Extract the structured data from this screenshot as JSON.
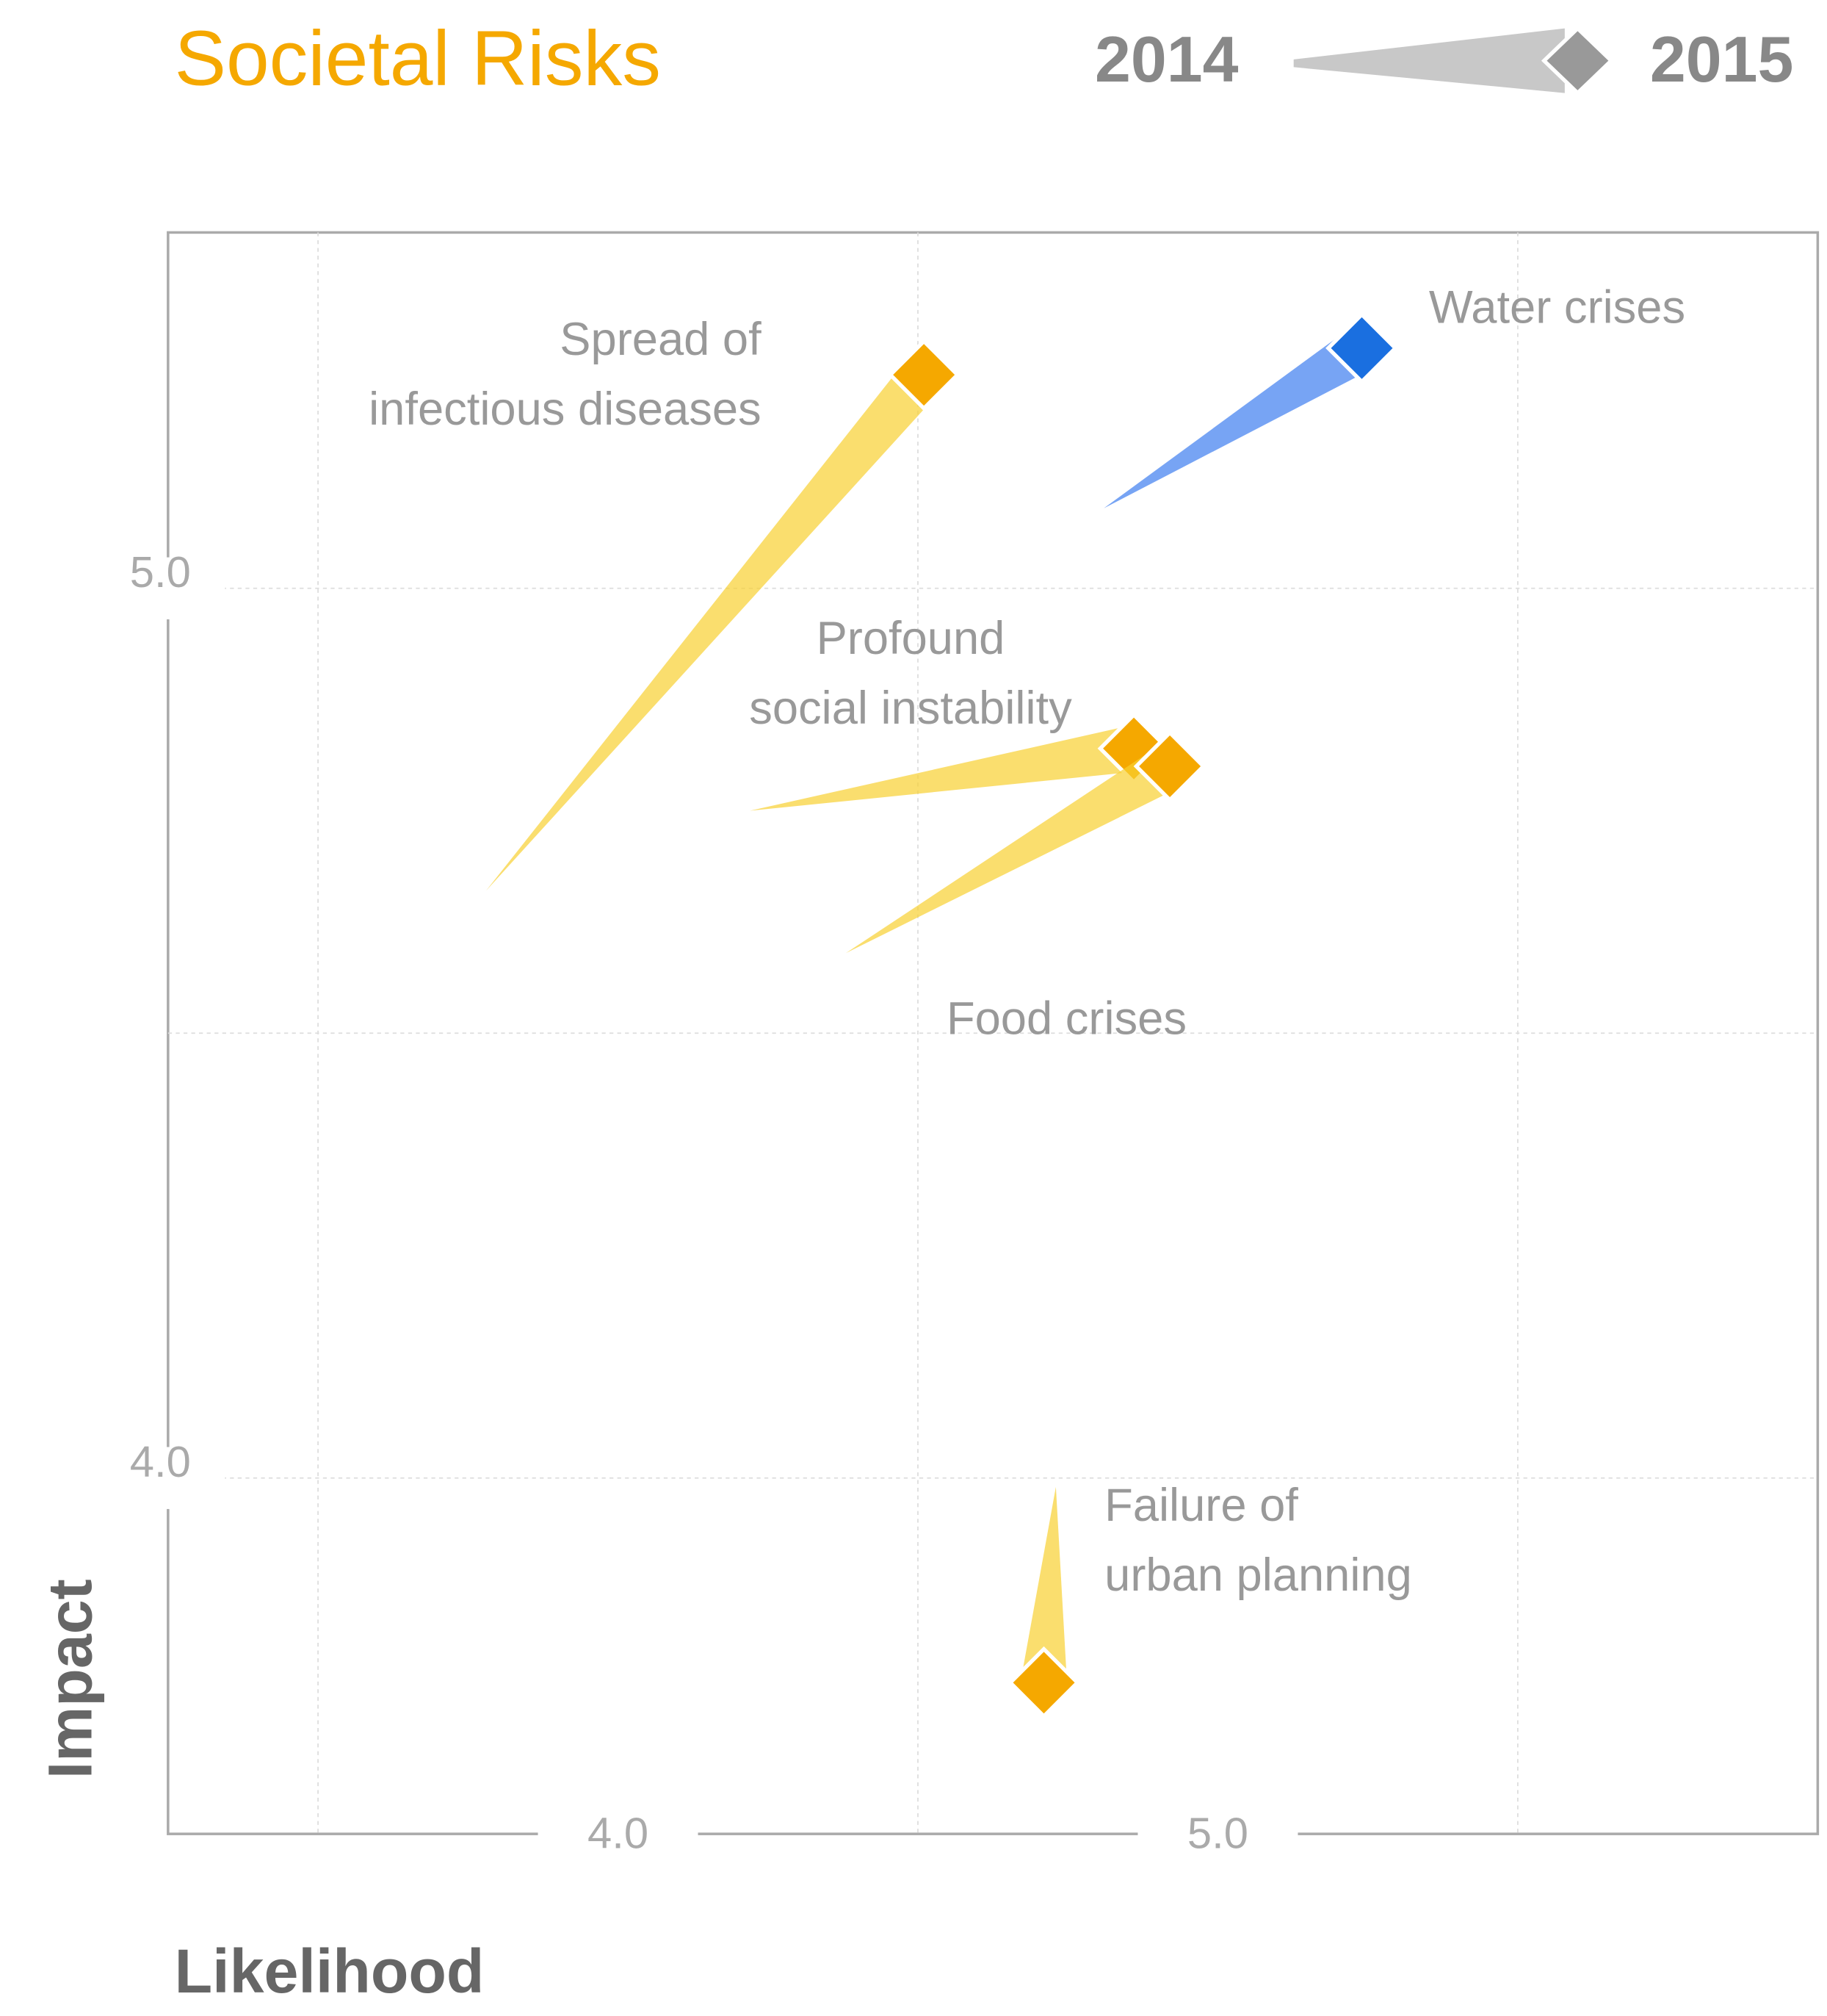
{
  "chart_data": {
    "type": "arrow-scatter",
    "title": "Societal Risks",
    "legend": {
      "from": "2014",
      "to": "2015"
    },
    "x_label": "Likelihood",
    "y_label": "Impact",
    "xlim": [
      3.25,
      6.0
    ],
    "ylim": [
      3.6,
      5.4
    ],
    "xticks": [
      {
        "value": 4,
        "label": "4.0"
      },
      {
        "value": 5,
        "label": "5.0"
      }
    ],
    "yticks": [
      {
        "value": 4,
        "label": "4.0"
      },
      {
        "value": 5,
        "label": "5.0"
      }
    ],
    "xgrid": [
      3.5,
      4.5,
      5.5
    ],
    "ygrid": [
      4.0,
      4.5,
      5.0
    ],
    "series": [
      {
        "name": "Spread of\ninfectious diseases",
        "color": "#f5a800",
        "x2014": 3.78,
        "y2014": 4.66,
        "x2015": 4.51,
        "y2015": 5.24
      },
      {
        "name": "Water crises",
        "color": "#1a6fe0",
        "x2014": 4.81,
        "y2014": 5.09,
        "x2015": 5.24,
        "y2015": 5.27
      },
      {
        "name": "Profound\nsocial instability",
        "color": "#f5a800",
        "x2014": 4.22,
        "y2014": 4.75,
        "x2015": 4.86,
        "y2015": 4.82
      },
      {
        "name": "Food crises",
        "color": "#f5a800",
        "x2014": 4.38,
        "y2014": 4.59,
        "x2015": 4.92,
        "y2015": 4.8
      },
      {
        "name": "Failure of\nurban planning",
        "color": "#f5a800",
        "x2014": 4.73,
        "y2014": 3.99,
        "x2015": 4.71,
        "y2015": 3.77
      }
    ]
  }
}
